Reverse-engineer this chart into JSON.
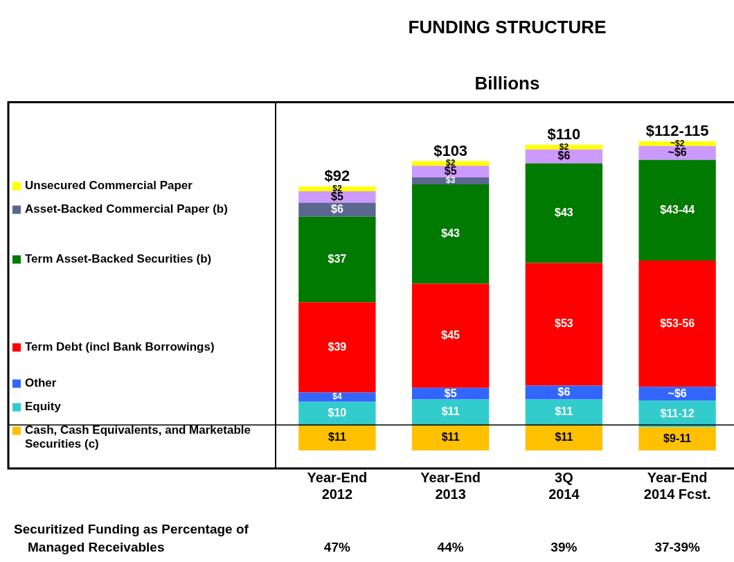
{
  "chart_data": {
    "type": "bar",
    "stacked": true,
    "title": "FUNDING STRUCTURE",
    "subtitle": "Billions",
    "categories": [
      "Year-End 2012",
      "Year-End 2013",
      "3Q 2014",
      "Year-End 2014 Fcst."
    ],
    "series": [
      {
        "name": "Cash, Cash Equivalents, and Marketable Securities (c)",
        "color": "#ffc000",
        "values": [
          11,
          11,
          11,
          10
        ],
        "value_labels": [
          "$11",
          "$11",
          "$11",
          "$9-11"
        ]
      },
      {
        "name": "Equity",
        "color": "#33cccc",
        "values": [
          10,
          11,
          11,
          11.5
        ],
        "value_labels": [
          "$10",
          "$11",
          "$11",
          "$11-12"
        ]
      },
      {
        "name": "Other",
        "color": "#3366ff",
        "values": [
          4,
          5,
          6,
          6
        ],
        "value_labels": [
          "$4",
          "$5",
          "$6",
          "~$6"
        ]
      },
      {
        "name": "Term Debt (incl Bank Borrowings)",
        "color": "#ff0000",
        "values": [
          39,
          45,
          53,
          54.5
        ],
        "value_labels": [
          "$39",
          "$45",
          "$53",
          "$53-56"
        ]
      },
      {
        "name": "Term Asset-Backed Securities (b)",
        "color": "#007a00",
        "values": [
          37,
          43,
          43,
          43.5
        ],
        "value_labels": [
          "$37",
          "$43",
          "$43",
          "$43-44"
        ]
      },
      {
        "name": "Asset-Backed Commercial Paper (b)",
        "color": "#5a6890",
        "values": [
          6,
          3,
          null,
          null
        ],
        "value_labels": [
          "$6",
          "$3",
          null,
          null
        ]
      },
      {
        "color": "#cc99ff",
        "values": [
          5,
          5,
          6,
          6
        ],
        "value_labels": [
          "$5",
          "$5",
          "$6",
          "~$6"
        ]
      },
      {
        "name": "Unsecured Commercial Paper",
        "color": "#ffff00",
        "values": [
          2,
          2,
          2,
          2
        ],
        "value_labels": [
          "$2",
          "$2",
          "$2",
          "~$2"
        ]
      }
    ],
    "legend": "left",
    "ref_lines": [
      {
        "axis": "y",
        "value": 11,
        "color": "#000000"
      }
    ],
    "annotations": [
      "$92",
      "$103",
      "$110",
      "$112-115",
      "Securitized Funding as Percentage of Managed Receivables",
      "47%",
      "44%",
      "39%",
      "37-39%"
    ]
  }
}
